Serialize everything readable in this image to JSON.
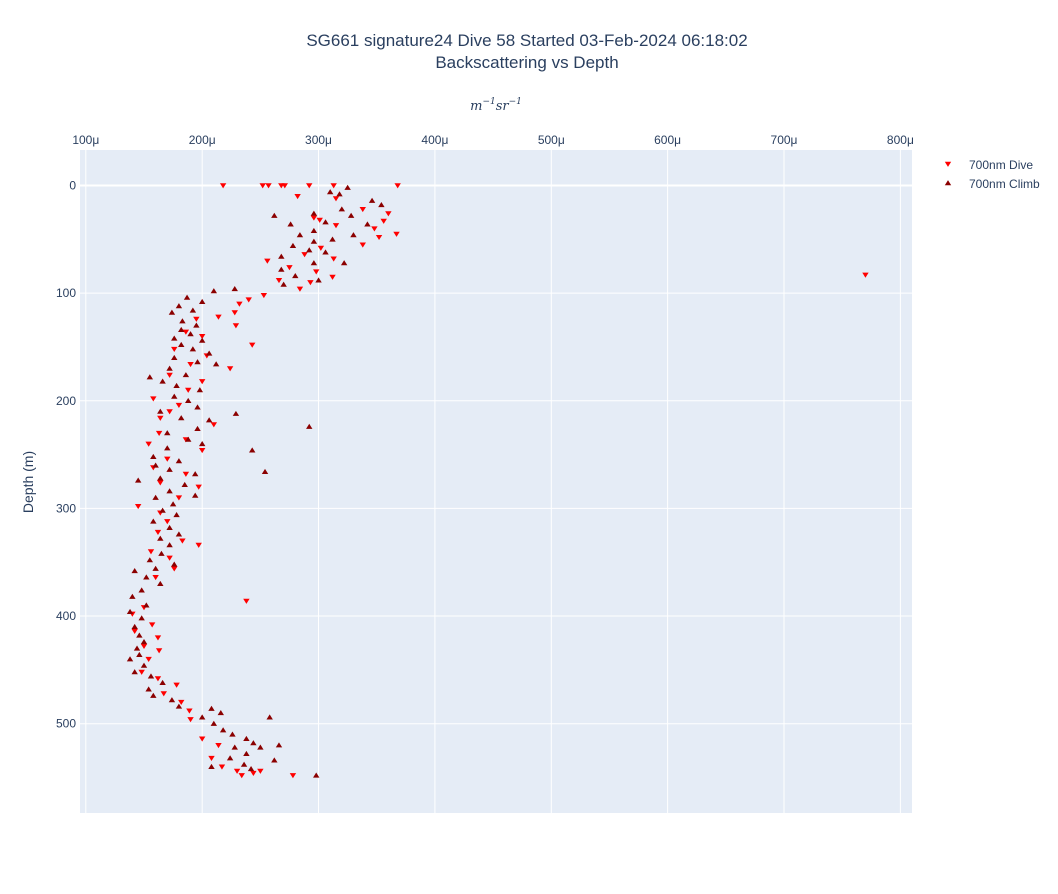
{
  "chart_data": {
    "type": "scatter",
    "title": "SG661 signature24 Dive 58 Started 03-Feb-2024 06:18:02",
    "subtitle": "Backscattering vs Depth",
    "xlabel": "m^-1 sr^-1",
    "ylabel": "Depth (m)",
    "x_axis_position": "top",
    "y_reversed": true,
    "xlim": [
      9.5e-05,
      0.00081
    ],
    "ylim": [
      583,
      -33
    ],
    "x_ticks": [
      0.0001,
      0.0002,
      0.0003,
      0.0004,
      0.0005,
      0.0006,
      0.0007,
      0.0008
    ],
    "x_tick_labels": [
      "100μ",
      "200μ",
      "300μ",
      "400μ",
      "500μ",
      "600μ",
      "700μ",
      "800μ"
    ],
    "y_ticks": [
      0,
      100,
      200,
      300,
      400,
      500
    ],
    "y_tick_labels": [
      "0",
      "100",
      "200",
      "300",
      "400",
      "500"
    ],
    "grid": true,
    "legend_position": "top-right",
    "plot_background": "#e5ecf6",
    "series": [
      {
        "name": "700nm Dive",
        "marker": "triangle-down",
        "color": "#ff0000",
        "points": [
          [
            0.000218,
            0
          ],
          [
            0.000252,
            0
          ],
          [
            0.000257,
            0
          ],
          [
            0.000268,
            0
          ],
          [
            0.000271,
            0
          ],
          [
            0.000292,
            0
          ],
          [
            0.000313,
            0
          ],
          [
            0.000368,
            0
          ],
          [
            0.000282,
            10
          ],
          [
            0.000315,
            12
          ],
          [
            0.000338,
            22
          ],
          [
            0.00036,
            26
          ],
          [
            0.000296,
            30
          ],
          [
            0.000301,
            32
          ],
          [
            0.000356,
            33
          ],
          [
            0.000315,
            37
          ],
          [
            0.000348,
            40
          ],
          [
            0.000367,
            45
          ],
          [
            0.000352,
            48
          ],
          [
            0.000338,
            55
          ],
          [
            0.000302,
            58
          ],
          [
            0.000288,
            64
          ],
          [
            0.000313,
            68
          ],
          [
            0.000256,
            70
          ],
          [
            0.000275,
            76
          ],
          [
            0.000298,
            80
          ],
          [
            0.000312,
            85
          ],
          [
            0.000293,
            90
          ],
          [
            0.000266,
            88
          ],
          [
            0.000284,
            96
          ],
          [
            0.000253,
            102
          ],
          [
            0.00024,
            106
          ],
          [
            0.000232,
            110
          ],
          [
            0.000228,
            118
          ],
          [
            0.000214,
            122
          ],
          [
            0.000195,
            124
          ],
          [
            0.000229,
            130
          ],
          [
            0.000186,
            136
          ],
          [
            0.0002,
            140
          ],
          [
            0.000243,
            148
          ],
          [
            0.000176,
            152
          ],
          [
            0.000204,
            158
          ],
          [
            0.00019,
            166
          ],
          [
            0.000224,
            170
          ],
          [
            0.000172,
            176
          ],
          [
            0.0002,
            182
          ],
          [
            0.000188,
            190
          ],
          [
            0.000158,
            198
          ],
          [
            0.00018,
            204
          ],
          [
            0.000172,
            210
          ],
          [
            0.000164,
            216
          ],
          [
            0.00021,
            222
          ],
          [
            0.000163,
            230
          ],
          [
            0.000186,
            236
          ],
          [
            0.000154,
            240
          ],
          [
            0.0002,
            246
          ],
          [
            0.00017,
            254
          ],
          [
            0.000158,
            262
          ],
          [
            0.000186,
            268
          ],
          [
            0.000164,
            276
          ],
          [
            0.000197,
            280
          ],
          [
            0.00018,
            290
          ],
          [
            0.000145,
            298
          ],
          [
            0.000164,
            304
          ],
          [
            0.00017,
            312
          ],
          [
            0.000162,
            322
          ],
          [
            0.000183,
            330
          ],
          [
            0.000197,
            334
          ],
          [
            0.000156,
            340
          ],
          [
            0.000172,
            346
          ],
          [
            0.000176,
            356
          ],
          [
            0.00016,
            364
          ],
          [
            0.000238,
            386
          ],
          [
            0.00015,
            392
          ],
          [
            0.00014,
            398
          ],
          [
            0.000157,
            408
          ],
          [
            0.000142,
            414
          ],
          [
            0.000162,
            420
          ],
          [
            0.00015,
            428
          ],
          [
            0.000163,
            432
          ],
          [
            0.000154,
            440
          ],
          [
            0.000148,
            452
          ],
          [
            0.000162,
            458
          ],
          [
            0.000178,
            464
          ],
          [
            0.000167,
            472
          ],
          [
            0.000182,
            480
          ],
          [
            0.000189,
            488
          ],
          [
            0.00019,
            496
          ],
          [
            0.0002,
            514
          ],
          [
            0.000214,
            520
          ],
          [
            0.000208,
            532
          ],
          [
            0.000217,
            540
          ],
          [
            0.00023,
            544
          ],
          [
            0.000244,
            546
          ],
          [
            0.000234,
            548
          ],
          [
            0.00025,
            544
          ],
          [
            0.000278,
            548
          ],
          [
            0.00077,
            83
          ]
        ]
      },
      {
        "name": "700nm Climb",
        "marker": "triangle-up",
        "color": "#8b0000",
        "points": [
          [
            0.000325,
            2
          ],
          [
            0.000318,
            8
          ],
          [
            0.00031,
            6
          ],
          [
            0.000346,
            14
          ],
          [
            0.000354,
            18
          ],
          [
            0.00032,
            22
          ],
          [
            0.000262,
            28
          ],
          [
            0.000296,
            26
          ],
          [
            0.000328,
            28
          ],
          [
            0.000306,
            34
          ],
          [
            0.000276,
            36
          ],
          [
            0.000342,
            36
          ],
          [
            0.000296,
            42
          ],
          [
            0.000284,
            46
          ],
          [
            0.00033,
            46
          ],
          [
            0.000312,
            50
          ],
          [
            0.000296,
            52
          ],
          [
            0.000278,
            56
          ],
          [
            0.000292,
            60
          ],
          [
            0.000306,
            62
          ],
          [
            0.000268,
            66
          ],
          [
            0.000322,
            72
          ],
          [
            0.000296,
            72
          ],
          [
            0.000268,
            78
          ],
          [
            0.00028,
            84
          ],
          [
            0.0003,
            88
          ],
          [
            0.00027,
            92
          ],
          [
            0.000228,
            96
          ],
          [
            0.00021,
            98
          ],
          [
            0.000187,
            104
          ],
          [
            0.0002,
            108
          ],
          [
            0.00018,
            112
          ],
          [
            0.000192,
            116
          ],
          [
            0.000174,
            118
          ],
          [
            0.000183,
            126
          ],
          [
            0.000195,
            130
          ],
          [
            0.000182,
            134
          ],
          [
            0.00019,
            138
          ],
          [
            0.000176,
            142
          ],
          [
            0.0002,
            144
          ],
          [
            0.000182,
            148
          ],
          [
            0.000192,
            152
          ],
          [
            0.000206,
            156
          ],
          [
            0.000176,
            160
          ],
          [
            0.000196,
            164
          ],
          [
            0.000212,
            166
          ],
          [
            0.000172,
            170
          ],
          [
            0.000186,
            176
          ],
          [
            0.000155,
            178
          ],
          [
            0.000166,
            182
          ],
          [
            0.000178,
            186
          ],
          [
            0.000198,
            190
          ],
          [
            0.000176,
            196
          ],
          [
            0.000188,
            200
          ],
          [
            0.000196,
            206
          ],
          [
            0.000164,
            210
          ],
          [
            0.000229,
            212
          ],
          [
            0.000182,
            216
          ],
          [
            0.000206,
            218
          ],
          [
            0.000292,
            224
          ],
          [
            0.000196,
            226
          ],
          [
            0.00017,
            230
          ],
          [
            0.000188,
            236
          ],
          [
            0.0002,
            240
          ],
          [
            0.00017,
            244
          ],
          [
            0.000243,
            246
          ],
          [
            0.000158,
            252
          ],
          [
            0.00018,
            256
          ],
          [
            0.00016,
            260
          ],
          [
            0.000172,
            264
          ],
          [
            0.000254,
            266
          ],
          [
            0.000194,
            268
          ],
          [
            0.000164,
            272
          ],
          [
            0.000145,
            274
          ],
          [
            0.000185,
            278
          ],
          [
            0.000172,
            284
          ],
          [
            0.000194,
            288
          ],
          [
            0.00016,
            290
          ],
          [
            0.000175,
            296
          ],
          [
            0.000166,
            302
          ],
          [
            0.000178,
            306
          ],
          [
            0.000158,
            312
          ],
          [
            0.000172,
            318
          ],
          [
            0.00018,
            324
          ],
          [
            0.000164,
            328
          ],
          [
            0.000172,
            334
          ],
          [
            0.000165,
            342
          ],
          [
            0.000155,
            348
          ],
          [
            0.000176,
            352
          ],
          [
            0.00016,
            356
          ],
          [
            0.000142,
            358
          ],
          [
            0.000152,
            364
          ],
          [
            0.000164,
            370
          ],
          [
            0.000148,
            376
          ],
          [
            0.00014,
            382
          ],
          [
            0.000152,
            390
          ],
          [
            0.000138,
            396
          ],
          [
            0.000148,
            402
          ],
          [
            0.000142,
            410
          ],
          [
            0.000146,
            418
          ],
          [
            0.00015,
            424
          ],
          [
            0.000144,
            430
          ],
          [
            0.000146,
            436
          ],
          [
            0.000138,
            440
          ],
          [
            0.00015,
            446
          ],
          [
            0.000142,
            452
          ],
          [
            0.000156,
            456
          ],
          [
            0.000166,
            462
          ],
          [
            0.000154,
            468
          ],
          [
            0.000158,
            474
          ],
          [
            0.000174,
            478
          ],
          [
            0.00018,
            484
          ],
          [
            0.000208,
            486
          ],
          [
            0.000216,
            490
          ],
          [
            0.0002,
            494
          ],
          [
            0.000258,
            494
          ],
          [
            0.00021,
            500
          ],
          [
            0.000218,
            506
          ],
          [
            0.000226,
            510
          ],
          [
            0.000238,
            514
          ],
          [
            0.000244,
            518
          ],
          [
            0.000228,
            522
          ],
          [
            0.00025,
            522
          ],
          [
            0.000266,
            520
          ],
          [
            0.000238,
            528
          ],
          [
            0.000224,
            532
          ],
          [
            0.000262,
            534
          ],
          [
            0.000236,
            538
          ],
          [
            0.000208,
            540
          ],
          [
            0.000242,
            542
          ],
          [
            0.000298,
            548
          ]
        ]
      }
    ]
  }
}
